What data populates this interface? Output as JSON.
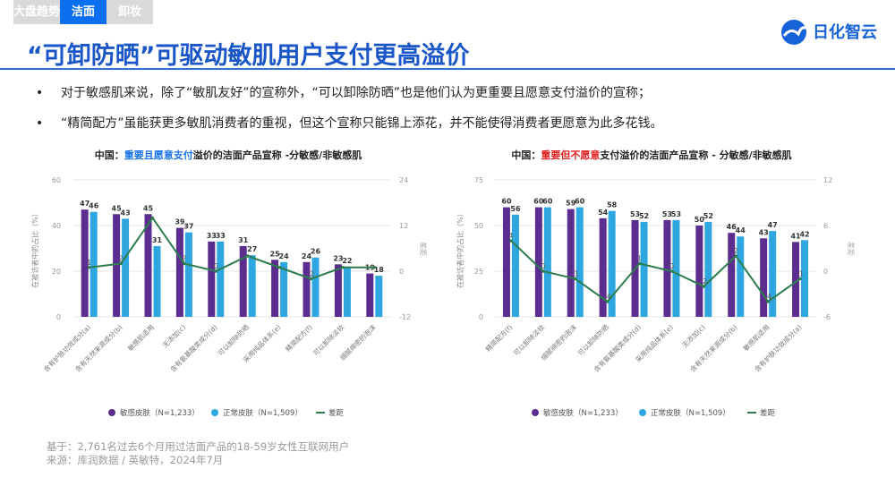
{
  "tabs": [
    {
      "label": "大盘趋势",
      "active": false
    },
    {
      "label": "洁面",
      "active": true
    },
    {
      "label": "卸妆",
      "active": false
    }
  ],
  "title": "“可卸防晒”可驱动敏肌用户支付更高溢价",
  "logo": {
    "text": "日化智云",
    "icon": "logo-drop-icon"
  },
  "bullets": [
    "对于敏感肌来说，除了“敏肌友好”的宣称外，“可以卸除防晒”也是他们认为更重要且愿意支付溢价的宣称；",
    "“精简配方”虽能获更多敏肌消费者的重视，但这个宣称只能锦上添花，并不能使得消费者更愿意为此多花钱。"
  ],
  "footer": {
    "base": "基于：2,761名过去6个月用过洁面产品的18-59岁女性互联网用户",
    "source": "来源：库润数据 / 英敏特，2024年7月"
  },
  "colors": {
    "sensitive": "#5b2d8e",
    "normal": "#2ea7e0",
    "diff": "#2e7d4f",
    "accent_blue": "#1a73e8",
    "accent_red": "#e02020"
  },
  "chart_data": [
    {
      "type": "bar+line",
      "title_prefix": "中国：",
      "title_highlight": "重要且愿意支付",
      "title_suffix": "溢价的洁面产品宣称 -分敏感/非敏感肌",
      "highlight_color": "#1a73e8",
      "ylabel": "在被访者中的占比（%）",
      "y2label": "差距",
      "ylim": [
        0,
        60
      ],
      "yticks": [
        0,
        20,
        40,
        60
      ],
      "y2lim": [
        -12,
        24
      ],
      "y2ticks": [
        -12,
        0,
        12,
        24
      ],
      "grid": true,
      "legend": "bottom",
      "categories": [
        "含有护肤功效成分(a)",
        "含有天然来源成分(b)",
        "敏感肌适用",
        "无添加(c)",
        "含有氨基酸类成分(d)",
        "可以卸除防晒",
        "采用纯品体系(e)",
        "精简配方(f)",
        "可以卸除淡妆",
        "细腻绵密的泡沫"
      ],
      "series": [
        {
          "name": "敏感皮肤（N=1,233）",
          "type": "bar",
          "values": [
            47,
            45,
            45,
            39,
            33,
            31,
            25,
            24,
            23,
            19
          ]
        },
        {
          "name": "正常皮肤（N=1,509）",
          "type": "bar",
          "values": [
            46,
            43,
            31,
            37,
            33,
            27,
            24,
            26,
            22,
            18
          ]
        },
        {
          "name": "差距",
          "type": "line",
          "values": [
            1,
            2,
            14,
            2,
            0,
            4,
            1,
            -2,
            1,
            1
          ],
          "labels": [
            "1",
            "2",
            "",
            "2",
            "0",
            "",
            "",
            "-2",
            "",
            ""
          ]
        }
      ]
    },
    {
      "type": "bar+line",
      "title_prefix": "中国：",
      "title_highlight": "重要但不愿意",
      "title_suffix": "支付溢价的洁面产品宣称 - 分敏感/非敏感肌",
      "highlight_color": "#e02020",
      "ylabel": "在被访者中的占比（%）",
      "y2label": "差距",
      "ylim": [
        0,
        75
      ],
      "yticks": [
        0,
        25,
        50,
        75
      ],
      "y2lim": [
        -6,
        12
      ],
      "y2ticks": [
        -6,
        0,
        6,
        12
      ],
      "grid": true,
      "legend": "bottom",
      "categories": [
        "精简配方(f)",
        "可以卸除淡妆",
        "细腻绵密的泡沫",
        "可以卸除防晒",
        "含有氨基酸类成分(d)",
        "采用纯品体系(e)",
        "无添加(c)",
        "含有天然来源成分(b)",
        "敏感肌适用",
        "含有护肤功效成分(a)"
      ],
      "series": [
        {
          "name": "敏感皮肤（N=1,233）",
          "type": "bar",
          "values": [
            60,
            60,
            59,
            54,
            53,
            53,
            50,
            46,
            43,
            41
          ]
        },
        {
          "name": "正常皮肤（N=1,509）",
          "type": "bar",
          "values": [
            56,
            60,
            60,
            58,
            52,
            53,
            52,
            44,
            47,
            42
          ]
        },
        {
          "name": "差距",
          "type": "line",
          "values": [
            4,
            0,
            -1,
            -4,
            1,
            0,
            -2,
            2,
            -4,
            -1
          ],
          "labels": [
            "4",
            "0",
            "-1",
            "-4",
            "1",
            "0",
            "-2",
            "2",
            "-4",
            "-1"
          ]
        }
      ]
    }
  ]
}
